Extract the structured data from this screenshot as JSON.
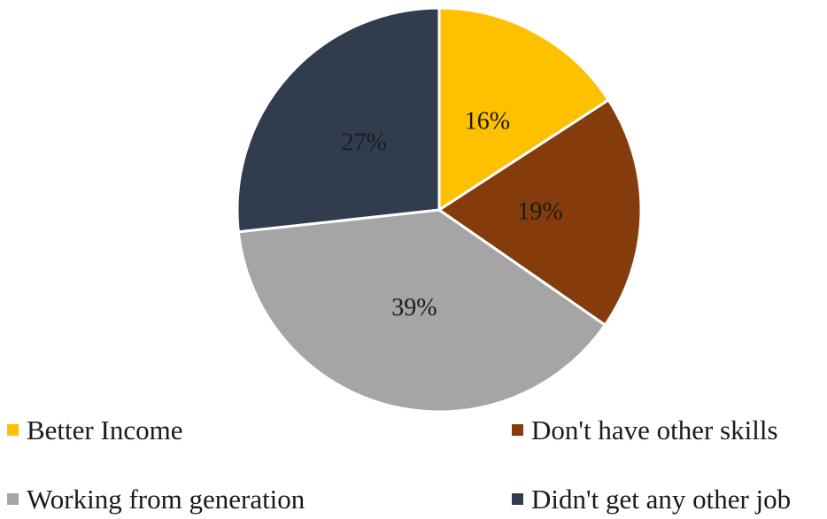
{
  "chart_data": {
    "type": "pie",
    "categories": [
      "Better Income",
      "Don't have other skills",
      "Working from generation",
      "Didn't get any other job"
    ],
    "values": [
      16,
      19,
      39,
      27
    ],
    "labels": [
      "16%",
      "19%",
      "39%",
      "27%"
    ],
    "colors": [
      "#FFC000",
      "#843C0C",
      "#A5A5A5",
      "#323C4F"
    ],
    "start_angle": "12 o'clock",
    "direction": "clockwise",
    "legend_position": "bottom"
  }
}
